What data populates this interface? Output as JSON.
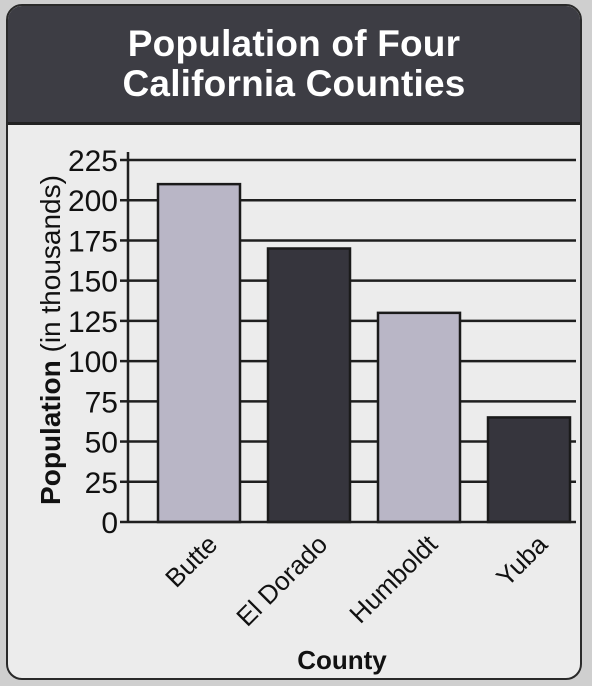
{
  "chart_data": {
    "type": "bar",
    "title_lines": [
      "Population of Four",
      "California Counties"
    ],
    "xlabel": "County",
    "ylabel": "Population (in thousands)",
    "ylim": [
      0,
      225
    ],
    "yticks": [
      0,
      25,
      50,
      75,
      100,
      125,
      150,
      175,
      200,
      225
    ],
    "grid": true,
    "categories": [
      "Butte",
      "El Dorado",
      "Humboldt",
      "Yuba"
    ],
    "values": [
      210,
      170,
      130,
      65
    ],
    "colors": [
      "#b9b6c6",
      "#36353d",
      "#b9b6c6",
      "#36353d"
    ]
  }
}
